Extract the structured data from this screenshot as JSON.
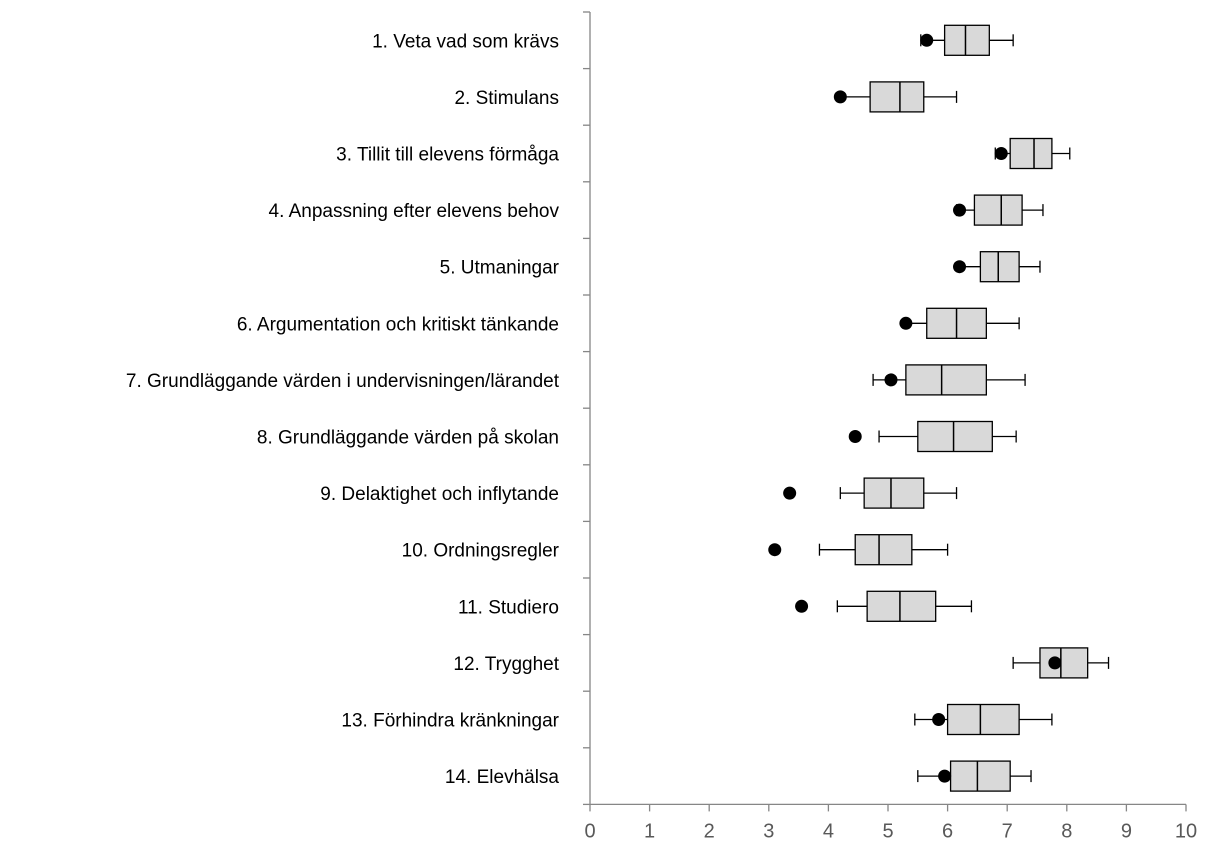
{
  "chart_data": {
    "type": "boxplot",
    "orientation": "horizontal",
    "categories": [
      "1. Veta vad som krävs",
      "2. Stimulans",
      "3. Tillit till elevens förmåga",
      "4. Anpassning efter elevens behov",
      "5. Utmaningar",
      "6. Argumentation och kritiskt tänkande",
      "7. Grundläggande värden i undervisningen/lärandet",
      "8. Grundläggande värden på skolan",
      "9. Delaktighet och inflytande",
      "10. Ordningsregler",
      "11. Studiero",
      "12. Trygghet",
      "13. Förhindra kränkningar",
      "14. Elevhälsa"
    ],
    "boxes": [
      {
        "whisker_low": 5.55,
        "q1": 5.95,
        "median": 6.3,
        "q3": 6.7,
        "whisker_high": 7.1,
        "point": 5.65
      },
      {
        "whisker_low": 4.2,
        "q1": 4.7,
        "median": 5.2,
        "q3": 5.6,
        "whisker_high": 6.15,
        "point": 4.2
      },
      {
        "whisker_low": 6.8,
        "q1": 7.05,
        "median": 7.45,
        "q3": 7.75,
        "whisker_high": 8.05,
        "point": 6.9
      },
      {
        "whisker_low": 6.15,
        "q1": 6.45,
        "median": 6.9,
        "q3": 7.25,
        "whisker_high": 7.6,
        "point": 6.2
      },
      {
        "whisker_low": 6.2,
        "q1": 6.55,
        "median": 6.85,
        "q3": 7.2,
        "whisker_high": 7.55,
        "point": 6.2
      },
      {
        "whisker_low": 5.3,
        "q1": 5.65,
        "median": 6.15,
        "q3": 6.65,
        "whisker_high": 7.2,
        "point": 5.3
      },
      {
        "whisker_low": 4.75,
        "q1": 5.3,
        "median": 5.9,
        "q3": 6.65,
        "whisker_high": 7.3,
        "point": 5.05
      },
      {
        "whisker_low": 4.85,
        "q1": 5.5,
        "median": 6.1,
        "q3": 6.75,
        "whisker_high": 7.15,
        "point": 4.45
      },
      {
        "whisker_low": 4.2,
        "q1": 4.6,
        "median": 5.05,
        "q3": 5.6,
        "whisker_high": 6.15,
        "point": 3.35
      },
      {
        "whisker_low": 3.85,
        "q1": 4.45,
        "median": 4.85,
        "q3": 5.4,
        "whisker_high": 6.0,
        "point": 3.1
      },
      {
        "whisker_low": 4.15,
        "q1": 4.65,
        "median": 5.2,
        "q3": 5.8,
        "whisker_high": 6.4,
        "point": 3.55
      },
      {
        "whisker_low": 7.1,
        "q1": 7.55,
        "median": 7.9,
        "q3": 8.35,
        "whisker_high": 8.7,
        "point": 7.8
      },
      {
        "whisker_low": 5.45,
        "q1": 6.0,
        "median": 6.55,
        "q3": 7.2,
        "whisker_high": 7.75,
        "point": 5.85
      },
      {
        "whisker_low": 5.5,
        "q1": 6.05,
        "median": 6.5,
        "q3": 7.05,
        "whisker_high": 7.4,
        "point": 5.95
      }
    ],
    "x_ticks": [
      "0",
      "1",
      "2",
      "3",
      "4",
      "5",
      "6",
      "7",
      "8",
      "9",
      "10"
    ],
    "xlim": [
      0,
      10
    ],
    "grid": false,
    "colors": {
      "box_fill": "#d9d9d9",
      "box_stroke": "#000000",
      "point": "#000000",
      "axis": "#868686",
      "tick_text": "#595959"
    }
  }
}
